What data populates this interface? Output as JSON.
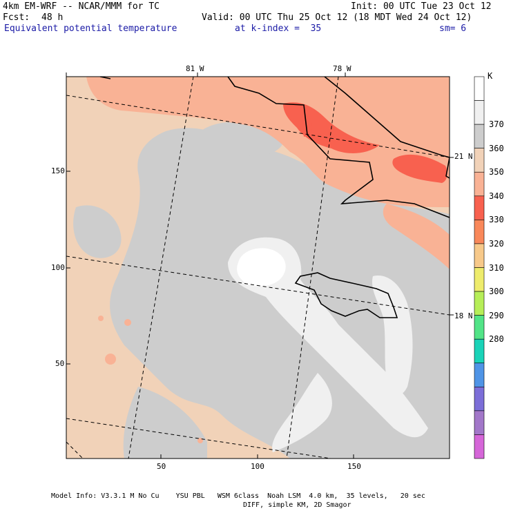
{
  "header": {
    "title_left": "4km EM-WRF -- NCAR/MMM for TC",
    "forecast_label": "Fcst:",
    "forecast_value": "48 h",
    "init": "Init: 00 UTC Tue 23 Oct 12",
    "valid": "Valid: 00 UTC Thu 25 Oct 12 (18 MDT Wed 24 Oct 12)",
    "field_name": "Equivalent potential temperature",
    "level": "at k-index =  35",
    "smoothing": "sm= 6"
  },
  "map": {
    "longitude_labels": [
      "81 W",
      "78 W"
    ],
    "latitude_labels": [
      "21 N",
      "18 N"
    ],
    "y_ticks": [
      "150",
      "100",
      "50"
    ],
    "x_ticks": [
      "50",
      "100",
      "150"
    ]
  },
  "colorbar": {
    "unit": "K",
    "labels": [
      "370",
      "360",
      "350",
      "340",
      "330",
      "320",
      "310",
      "300",
      "290",
      "280"
    ],
    "colors": [
      "#ffffff",
      "#f0f0f0",
      "#cdcdcd",
      "#f1d2b8",
      "#f9b295",
      "#f8614f",
      "#f9885a",
      "#f7c98a",
      "#eeec6c",
      "#b6ee58",
      "#52e487",
      "#1ad3b8",
      "#4f94e6",
      "#7c6ed8",
      "#a277c9",
      "#d566d8"
    ]
  },
  "footer": {
    "line1": "Model Info: V3.3.1 M No Cu    YSU PBL   WSM 6class  Noah LSM  4.0 km,  35 levels,   20 sec",
    "line2": "DIFF, simple KM, 2D Smagor"
  }
}
